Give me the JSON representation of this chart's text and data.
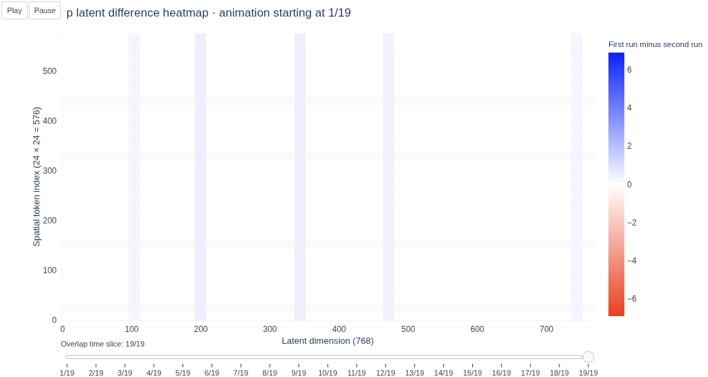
{
  "chart_data": {
    "type": "heatmap",
    "title": "p latent difference heatmap · animation starting at 1/19",
    "xlabel": "Latent dimension (768)",
    "ylabel": "Spatial token index (24 × 24 = 576)",
    "clabel": "First run minus second run",
    "x": [
      7.5,
      23.5,
      39.5,
      55.5,
      71.5,
      87.5,
      103.5,
      119.5,
      135.5,
      151.5,
      167.5,
      183.5,
      199.5,
      215.5,
      231.5,
      247.5,
      263.5,
      279.5,
      295.5,
      311.5,
      327.5,
      343.5,
      359.5,
      375.5,
      391.5,
      407.5,
      423.5,
      439.5,
      455.5,
      471.5,
      487.5,
      503.5,
      519.5,
      535.5,
      551.5,
      567.5,
      583.5,
      599.5,
      615.5,
      631.5,
      647.5,
      663.5,
      679.5,
      695.5,
      711.5,
      727.5,
      743.5,
      759.5
    ],
    "xlim": [
      -0.5,
      767.5
    ],
    "xticks": [
      0,
      100,
      200,
      300,
      400,
      500,
      600,
      700
    ],
    "ylim": [
      -0.5,
      575.5
    ],
    "yticks": [
      0,
      100,
      200,
      300,
      400,
      500
    ],
    "clim": [
      -6.9,
      6.9
    ],
    "cticks": [
      -6,
      -4,
      -2,
      0,
      2,
      4,
      6
    ],
    "cells": [
      [
        0,
        0,
        0,
        0,
        0,
        0,
        0.3,
        0,
        0,
        0,
        0,
        0,
        0.5,
        0,
        0,
        0,
        0,
        0,
        0,
        0,
        0,
        0.5,
        0,
        0,
        0,
        0,
        0,
        0,
        0,
        0.4,
        0,
        0,
        0,
        0,
        0,
        0,
        0,
        0,
        0,
        0,
        0,
        0,
        0,
        0,
        0,
        0,
        0.3,
        0
      ],
      [
        0,
        0,
        0,
        0,
        0,
        0,
        0.3,
        0,
        0,
        0,
        0,
        0,
        0.5,
        0,
        0,
        0,
        0,
        0,
        0,
        0,
        0,
        0.5,
        0,
        0,
        0,
        0,
        0,
        0,
        0,
        0.4,
        0,
        0,
        0,
        0,
        0,
        0,
        0,
        0,
        0,
        0,
        0,
        0,
        0,
        0,
        0,
        0,
        0.3,
        0
      ],
      [
        0,
        0,
        0,
        0,
        0,
        0,
        0.3,
        0,
        0,
        0,
        0,
        0,
        0.5,
        0,
        0,
        0,
        0,
        0,
        0,
        0,
        0,
        0.5,
        0,
        0,
        0,
        0,
        0,
        0,
        0,
        0.4,
        0,
        0,
        0,
        0,
        0,
        0,
        0,
        0,
        0,
        0,
        0,
        0,
        0,
        0,
        0,
        0,
        0.3,
        0
      ],
      [
        0,
        0,
        0,
        0,
        0,
        0,
        0.3,
        0,
        0,
        0,
        0,
        0,
        0.5,
        0,
        0,
        0,
        0,
        0,
        0,
        0,
        0,
        0.5,
        0,
        0,
        0,
        0,
        0,
        0,
        0,
        0.4,
        0,
        0,
        0,
        0,
        0,
        0,
        0,
        0,
        0,
        0,
        0,
        0,
        0,
        0,
        0,
        0,
        0.3,
        0
      ],
      [
        0,
        0,
        0,
        0,
        0,
        0,
        0.3,
        0,
        0,
        0,
        0,
        0,
        0.5,
        0,
        0,
        0,
        0,
        0,
        0,
        0,
        0,
        0.5,
        0,
        0,
        0,
        0,
        0,
        0,
        0,
        0.4,
        0,
        0,
        0,
        0,
        0,
        0,
        0,
        0,
        0,
        0,
        0,
        0,
        0,
        0,
        0,
        0,
        0.3,
        0
      ],
      [
        0,
        0,
        0,
        0,
        0,
        0,
        0.3,
        0,
        0,
        0,
        0,
        0,
        0.5,
        0,
        0,
        0,
        0,
        0,
        0,
        0,
        0,
        0.5,
        0,
        0,
        0,
        0,
        0,
        0,
        0,
        0.4,
        0,
        0,
        0,
        0,
        0,
        0,
        0,
        0,
        0,
        0,
        0,
        0,
        0,
        0,
        0,
        0,
        0.3,
        0
      ],
      [
        0,
        0,
        0,
        0,
        0,
        0,
        0.3,
        0,
        0,
        0,
        0,
        0,
        0.5,
        0,
        0,
        0,
        0,
        0,
        0,
        0,
        0,
        0.5,
        0,
        0,
        0,
        0,
        0,
        0,
        0,
        0.4,
        0,
        0,
        0,
        0,
        0,
        0,
        0,
        0,
        0,
        0,
        0,
        0,
        0,
        0,
        0,
        0,
        0.3,
        0
      ],
      [
        0,
        0,
        0,
        0,
        0,
        0,
        0.3,
        0,
        0,
        0,
        0,
        0,
        0.5,
        0,
        0,
        0,
        0,
        0,
        0,
        0,
        0,
        0.5,
        0,
        0,
        0,
        0,
        0,
        0,
        0,
        0.4,
        0,
        0,
        0,
        0,
        0,
        0,
        0,
        0,
        0,
        0,
        0,
        0,
        0,
        0,
        0,
        0,
        0.3,
        0
      ],
      [
        -0.2,
        -0.2,
        -0.2,
        -0.2,
        -0.2,
        -0.2,
        0.3,
        -0.2,
        -0.2,
        -0.2,
        -0.2,
        -0.2,
        0.5,
        -0.2,
        -0.2,
        -0.2,
        -0.2,
        -0.2,
        -0.2,
        -0.2,
        -0.2,
        0.5,
        -0.2,
        -0.2,
        -0.2,
        -0.2,
        -0.2,
        -0.2,
        -0.2,
        0.4,
        -0.2,
        -0.2,
        -0.2,
        -0.2,
        -0.2,
        -0.2,
        -0.2,
        -0.2,
        -0.2,
        -0.2,
        -0.2,
        -0.2,
        -0.2,
        -0.2,
        -0.2,
        -0.2,
        0.3,
        -0.2
      ],
      [
        0,
        0,
        0,
        0,
        0,
        0,
        0.3,
        0,
        0,
        0,
        0,
        0,
        0.5,
        0,
        0,
        0,
        0,
        0,
        0,
        0,
        0,
        0.5,
        0,
        0,
        0,
        0,
        0,
        0,
        0,
        0.4,
        0,
        0,
        0,
        0,
        0,
        0,
        0,
        0,
        0,
        0,
        0,
        0,
        0,
        0,
        0,
        0,
        0.3,
        0
      ],
      [
        0,
        0,
        0,
        0,
        0,
        0,
        0.3,
        0,
        0,
        0,
        0,
        0,
        0.5,
        0,
        0,
        0,
        0,
        0,
        0,
        0,
        0,
        0.5,
        0,
        0,
        0,
        0,
        0,
        0,
        0,
        0.4,
        0,
        0,
        0,
        0,
        0,
        0,
        0,
        0,
        0,
        0,
        0,
        0,
        0,
        0,
        0,
        0,
        0.3,
        0
      ],
      [
        0,
        0,
        0,
        0,
        0,
        0,
        0.3,
        0,
        0,
        0,
        0,
        0,
        0.5,
        0,
        0,
        0,
        0,
        0,
        0,
        0,
        0,
        0.5,
        0,
        0,
        0,
        0,
        0,
        0,
        0,
        0.4,
        0,
        0,
        0,
        0,
        0,
        0,
        0,
        0,
        0,
        0,
        0,
        0,
        0,
        0,
        0,
        0,
        0.3,
        0
      ],
      [
        0,
        0,
        0,
        0,
        0,
        0,
        0.3,
        0,
        0,
        0,
        0,
        0,
        0.5,
        0,
        0,
        0,
        0,
        0,
        0,
        0,
        0,
        0.5,
        0,
        0,
        0,
        0,
        0,
        0,
        0,
        0.4,
        0,
        0,
        0,
        0,
        0,
        0,
        0,
        0,
        0,
        0,
        0,
        0,
        0,
        0,
        0,
        0,
        0.3,
        0
      ],
      [
        0,
        0,
        0,
        0,
        0,
        0,
        0.3,
        0,
        0,
        0,
        0,
        0,
        0.5,
        0,
        0,
        0,
        0,
        0,
        0,
        0,
        0,
        0.5,
        0,
        0,
        0,
        0,
        0,
        0,
        0,
        0.4,
        0,
        0,
        0,
        0,
        0,
        0,
        0,
        0,
        0,
        0,
        0,
        0,
        0,
        0,
        0,
        0,
        0.3,
        0
      ],
      [
        0,
        0,
        0,
        0,
        0,
        0,
        0.3,
        0,
        0,
        0,
        0,
        0,
        0.5,
        0,
        0,
        0,
        0,
        0,
        0,
        0,
        0,
        0.5,
        0,
        0,
        0,
        0,
        0,
        0,
        0,
        0.4,
        0,
        0,
        0,
        0,
        0,
        0,
        0,
        0,
        0,
        0,
        0,
        0,
        0,
        0,
        0,
        0,
        0.3,
        0
      ],
      [
        -0.2,
        -0.2,
        -0.2,
        -0.2,
        -0.2,
        -0.2,
        0.3,
        -0.2,
        -0.2,
        -0.2,
        -0.2,
        -0.2,
        0.5,
        -0.2,
        -0.2,
        -0.2,
        -0.2,
        -0.2,
        -0.2,
        -0.2,
        -0.2,
        0.5,
        -0.2,
        -0.2,
        -0.2,
        -0.2,
        -0.2,
        -0.2,
        -0.2,
        0.4,
        -0.2,
        -0.2,
        -0.2,
        -0.2,
        -0.2,
        -0.2,
        -0.2,
        -0.2,
        -0.2,
        -0.2,
        -0.2,
        -0.2,
        -0.2,
        -0.2,
        -0.2,
        -0.2,
        0.3,
        -0.2
      ],
      [
        0,
        0,
        0,
        0,
        0,
        0,
        0.3,
        0,
        0,
        0,
        0,
        0,
        0.5,
        0,
        0,
        0,
        0,
        0,
        0,
        0,
        0,
        0.5,
        0,
        0,
        0,
        0,
        0,
        0,
        0,
        0.4,
        0,
        0,
        0,
        0,
        0,
        0,
        0,
        0,
        0,
        0,
        0,
        0,
        0,
        0,
        0,
        0,
        0.3,
        0
      ],
      [
        0,
        0,
        0,
        0,
        0,
        0,
        0.3,
        0,
        0,
        0,
        0,
        0,
        0.5,
        0,
        0,
        0,
        0,
        0,
        0,
        0,
        0,
        0.5,
        0,
        0,
        0,
        0,
        0,
        0,
        0,
        0.4,
        0,
        0,
        0,
        0,
        0,
        0,
        0,
        0,
        0,
        0,
        0,
        0,
        0,
        0,
        0,
        0,
        0.3,
        0
      ],
      [
        0,
        0,
        0,
        0,
        0,
        0,
        0.3,
        0,
        0,
        0,
        0,
        0,
        0.5,
        0,
        0,
        0,
        0,
        0,
        0,
        0,
        0,
        0.5,
        0,
        0,
        0,
        0,
        0,
        0,
        0,
        0.4,
        0,
        0,
        0,
        0,
        0,
        0,
        0,
        0,
        0,
        0,
        0,
        0,
        0,
        0,
        0,
        0,
        0.3,
        0
      ],
      [
        0,
        0,
        0,
        0,
        0,
        0,
        0.3,
        0,
        0,
        0,
        0,
        0,
        0.5,
        0,
        0,
        0,
        0,
        0,
        0,
        0,
        0,
        0.5,
        0,
        0,
        0,
        0,
        0,
        0,
        0,
        0.4,
        0,
        0,
        0,
        0,
        0,
        0,
        0,
        0,
        0,
        0,
        0,
        0,
        0,
        0,
        0,
        0,
        0.3,
        0
      ],
      [
        0,
        0,
        0,
        0,
        0,
        0,
        0.3,
        0,
        0,
        0,
        0,
        0,
        0.5,
        0,
        0,
        0,
        0,
        0,
        0,
        0,
        0,
        0.5,
        0,
        0,
        0,
        0,
        0,
        0,
        0,
        0.4,
        0,
        0,
        0,
        0,
        0,
        0,
        0,
        0,
        0,
        0,
        0,
        0,
        0,
        0,
        0,
        0,
        0.3,
        0
      ],
      [
        0,
        0,
        0,
        0,
        0,
        0,
        0.3,
        0,
        0,
        0,
        0,
        0,
        0.5,
        0,
        0,
        0,
        0,
        0,
        0,
        0,
        0,
        0.5,
        0,
        0,
        0,
        0,
        0,
        0,
        0,
        0.4,
        0,
        0,
        0,
        0,
        0,
        0,
        0,
        0,
        0,
        0,
        0,
        0,
        0,
        0,
        0,
        0,
        0.3,
        0
      ],
      [
        0,
        0,
        0,
        0,
        0,
        0,
        0.3,
        0,
        0,
        0,
        0,
        0,
        0.5,
        0,
        0,
        0,
        0,
        0,
        0,
        0,
        0,
        0.5,
        0,
        0,
        0,
        0,
        0,
        0,
        0,
        0.4,
        0,
        0,
        0,
        0,
        0,
        0,
        0,
        0,
        0,
        0,
        0,
        0,
        0,
        0,
        0,
        0,
        0.3,
        0
      ],
      [
        0,
        0,
        0,
        0,
        0,
        0,
        0.3,
        0,
        0,
        0,
        0,
        0,
        0.5,
        0,
        0,
        0,
        0,
        0,
        0,
        0,
        0,
        0.5,
        0,
        0,
        0,
        0,
        0,
        0,
        0,
        0.4,
        0,
        0,
        0,
        0,
        0,
        0,
        0,
        0,
        0,
        0,
        0,
        0,
        0,
        0,
        0,
        0,
        0.3,
        0
      ],
      [
        0,
        0,
        0,
        0,
        0,
        0,
        0.3,
        0,
        0,
        0,
        0,
        0,
        0.5,
        0,
        0,
        0,
        0,
        0,
        0,
        0,
        0,
        0.5,
        0,
        0,
        0,
        0,
        0,
        0,
        0,
        0.4,
        0,
        0,
        0,
        0,
        0,
        0,
        0,
        0,
        0,
        0,
        0,
        0,
        0,
        0,
        0,
        0,
        0.3,
        0
      ],
      [
        0,
        0,
        0,
        0,
        0,
        0,
        0.3,
        0,
        0,
        0,
        0,
        0,
        0.5,
        0,
        0,
        0,
        0,
        0,
        0,
        0,
        0,
        0.5,
        0,
        0,
        0,
        0,
        0,
        0,
        0,
        0.4,
        0,
        0,
        0,
        0,
        0,
        0,
        0,
        0,
        0,
        0,
        0,
        0,
        0,
        0,
        0,
        0,
        0.3,
        0
      ],
      [
        -0.2,
        -0.2,
        -0.2,
        -0.2,
        -0.2,
        -0.2,
        0.3,
        -0.2,
        -0.2,
        -0.2,
        -0.2,
        -0.2,
        0.5,
        -0.2,
        -0.2,
        -0.2,
        -0.2,
        -0.2,
        -0.2,
        -0.2,
        -0.2,
        0.5,
        -0.2,
        -0.2,
        -0.2,
        -0.2,
        -0.2,
        -0.2,
        -0.2,
        0.4,
        -0.2,
        -0.2,
        -0.2,
        -0.2,
        -0.2,
        -0.2,
        -0.2,
        -0.2,
        -0.2,
        -0.2,
        -0.2,
        -0.2,
        -0.2,
        -0.2,
        -0.2,
        -0.2,
        0.3,
        -0.2
      ],
      [
        0,
        0,
        0,
        0,
        0,
        0,
        0.3,
        0,
        0,
        0,
        0,
        0,
        0.5,
        0,
        0,
        0,
        0,
        0,
        0,
        0,
        0,
        0.5,
        0,
        0,
        0,
        0,
        0,
        0,
        0,
        0.4,
        0,
        0,
        0,
        0,
        0,
        0,
        0,
        0,
        0,
        0,
        0,
        0,
        0,
        0,
        0,
        0,
        0.3,
        0
      ],
      [
        0,
        0,
        0,
        0,
        0,
        0,
        0.3,
        0,
        0,
        0,
        0,
        0,
        0.5,
        0,
        0,
        0,
        0,
        0,
        0,
        0,
        0,
        0.5,
        0,
        0,
        0,
        0,
        0,
        0,
        0,
        0.4,
        0,
        0,
        0,
        0,
        0,
        0,
        0,
        0,
        0,
        0,
        0,
        0,
        0,
        0,
        0,
        0,
        0.3,
        0
      ],
      [
        0,
        0,
        0,
        0,
        0,
        0,
        0.3,
        0,
        0,
        0,
        0,
        0,
        0.5,
        0,
        0,
        0,
        0,
        0,
        0,
        0,
        0,
        0.5,
        0,
        0,
        0,
        0,
        0,
        0,
        0,
        0.4,
        0,
        0,
        0,
        0,
        0,
        0,
        0,
        0,
        0,
        0,
        0,
        0,
        0,
        0,
        0,
        0,
        0.3,
        0
      ],
      [
        0,
        0,
        0,
        0,
        0,
        0,
        0.3,
        0,
        0,
        0,
        0,
        0,
        0.5,
        0,
        0,
        0,
        0,
        0,
        0,
        0,
        0,
        0.5,
        0,
        0,
        0,
        0,
        0,
        0,
        0,
        0.4,
        0,
        0,
        0,
        0,
        0,
        0,
        0,
        0,
        0,
        0,
        0,
        0,
        0,
        0,
        0,
        0,
        0.3,
        0
      ],
      [
        0,
        0,
        0,
        0,
        0,
        0,
        0.3,
        0,
        0,
        0,
        0,
        0,
        0.5,
        0,
        0,
        0,
        0,
        0,
        0,
        0,
        0,
        0.5,
        0,
        0,
        0,
        0,
        0,
        0,
        0,
        0.4,
        0,
        0,
        0,
        0,
        0,
        0,
        0,
        0,
        0,
        0,
        0,
        0,
        0,
        0,
        0,
        0,
        0.3,
        0
      ],
      [
        0,
        0,
        0,
        0,
        0,
        0,
        0.3,
        0,
        0,
        0,
        0,
        0,
        0.5,
        0,
        0,
        0,
        0,
        0,
        0,
        0,
        0,
        0.5,
        0,
        0,
        0,
        0,
        0,
        0,
        0,
        0.4,
        0,
        0,
        0,
        0,
        0,
        0,
        0,
        0,
        0,
        0,
        0,
        0,
        0,
        0,
        0,
        0,
        0.3,
        0
      ],
      [
        0,
        0,
        0,
        0,
        0,
        0,
        0.3,
        0,
        0,
        0,
        0,
        0,
        0.5,
        0,
        0,
        0,
        0,
        0,
        0,
        0,
        0,
        0.5,
        0,
        0,
        0,
        0,
        0,
        0,
        0,
        0.4,
        0,
        0,
        0,
        0,
        0,
        0,
        0,
        0,
        0,
        0,
        0,
        0,
        0,
        0,
        0,
        0,
        0.3,
        0
      ],
      [
        -0.2,
        -0.2,
        -0.2,
        -0.2,
        -0.2,
        -0.2,
        0.3,
        -0.2,
        -0.2,
        -0.2,
        -0.2,
        -0.2,
        0.5,
        -0.2,
        -0.2,
        -0.2,
        -0.2,
        -0.2,
        -0.2,
        -0.2,
        -0.2,
        0.5,
        -0.2,
        -0.2,
        -0.2,
        -0.2,
        -0.2,
        -0.2,
        -0.2,
        0.4,
        -0.2,
        -0.2,
        -0.2,
        -0.2,
        -0.2,
        -0.2,
        -0.2,
        -0.2,
        -0.2,
        -0.2,
        -0.2,
        -0.2,
        -0.2,
        -0.2,
        -0.2,
        -0.2,
        0.3,
        -0.2
      ],
      [
        0,
        0,
        0,
        0,
        0,
        0,
        0.3,
        0,
        0,
        0,
        0,
        0,
        0.5,
        0,
        0,
        0,
        0,
        0,
        0,
        0,
        0,
        0.5,
        0,
        0,
        0,
        0,
        0,
        0,
        0,
        0.4,
        0,
        0,
        0,
        0,
        0,
        0,
        0,
        0,
        0,
        0,
        0,
        0,
        0,
        0,
        0,
        0,
        0.3,
        0
      ]
    ],
    "annotations": [
      "Play",
      "Pause",
      "Overlap time slice: 19/19",
      "1/19",
      "2/19",
      "3/19",
      "4/19",
      "5/19",
      "6/19",
      "7/19",
      "8/19",
      "9/19",
      "10/19",
      "11/19",
      "12/19",
      "13/19",
      "14/19",
      "15/19",
      "16/19",
      "17/19",
      "18/19",
      "19/19"
    ]
  }
}
